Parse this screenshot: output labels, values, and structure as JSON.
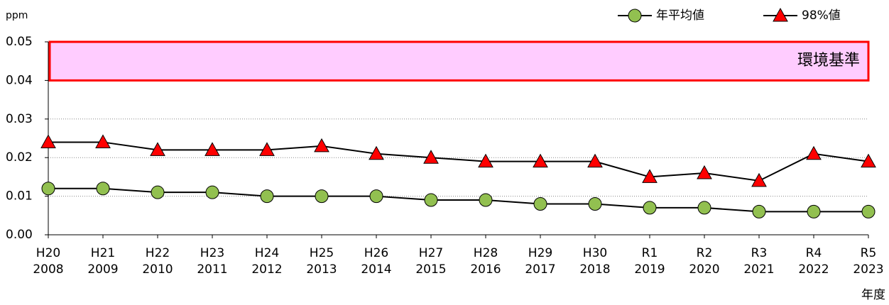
{
  "chart_data": {
    "type": "line",
    "y_unit": "ppm",
    "x_label": "年度",
    "categories": [
      [
        "H20",
        "2008"
      ],
      [
        "H21",
        "2009"
      ],
      [
        "H22",
        "2010"
      ],
      [
        "H23",
        "2011"
      ],
      [
        "H24",
        "2012"
      ],
      [
        "H25",
        "2013"
      ],
      [
        "H26",
        "2014"
      ],
      [
        "H27",
        "2015"
      ],
      [
        "H28",
        "2016"
      ],
      [
        "H29",
        "2017"
      ],
      [
        "H30",
        "2018"
      ],
      [
        "R1",
        "2019"
      ],
      [
        "R2",
        "2020"
      ],
      [
        "R3",
        "2021"
      ],
      [
        "R4",
        "2022"
      ],
      [
        "R5",
        "2023"
      ]
    ],
    "series": [
      {
        "name": "年平均値",
        "color": "#92c050",
        "marker": "circle",
        "values": [
          0.012,
          0.012,
          0.011,
          0.011,
          0.01,
          0.01,
          0.01,
          0.009,
          0.009,
          0.008,
          0.008,
          0.007,
          0.007,
          0.006,
          0.006,
          0.006
        ]
      },
      {
        "name": "98%値",
        "color": "#ff0000",
        "marker": "triangle",
        "values": [
          0.024,
          0.024,
          0.022,
          0.022,
          0.022,
          0.023,
          0.021,
          0.02,
          0.019,
          0.019,
          0.019,
          0.015,
          0.016,
          0.014,
          0.021,
          0.019
        ]
      }
    ],
    "band": {
      "label": "環境基準",
      "range": [
        0.04,
        0.05
      ],
      "color": "#ffccff",
      "edge": "#ff0000"
    },
    "ylim": [
      0,
      0.05
    ],
    "yticks": [
      {
        "value": 0,
        "label": "0.00"
      },
      0.01,
      0.02,
      0.03,
      0.04,
      0.05
    ],
    "grid": true,
    "legend": "top-right"
  }
}
